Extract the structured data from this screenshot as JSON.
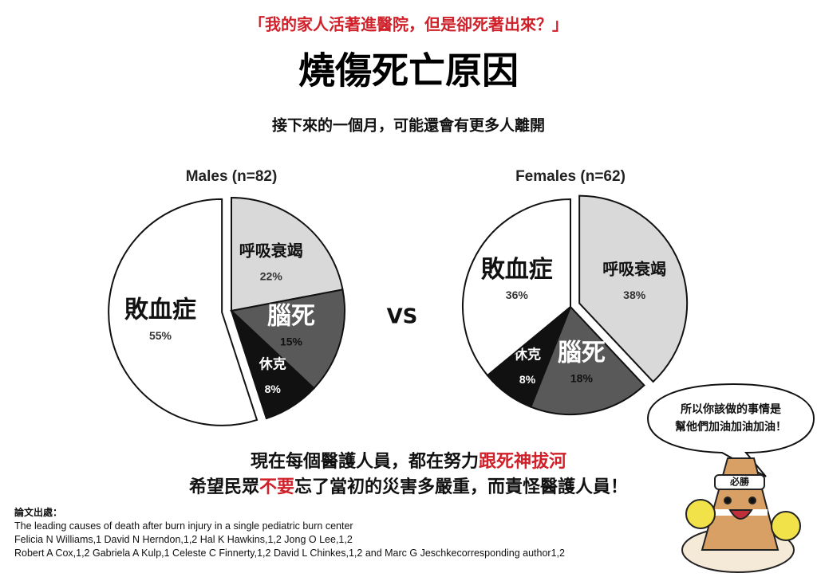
{
  "header": {
    "quote": "「我的家人活著進醫院，但是卻死著出來？」",
    "title": "燒傷死亡原因",
    "subtitle": "接下來的一個月，可能還會有更多人離開"
  },
  "chart_data": [
    {
      "type": "pie",
      "title": "Males (n=82)",
      "categories": [
        "呼吸衰竭",
        "腦死",
        "休克",
        "敗血症"
      ],
      "values": [
        22,
        15,
        8,
        55
      ],
      "value_labels": [
        "22%",
        "15%",
        "8%",
        "55%"
      ],
      "colors": [
        "#d9d9d9",
        "#595959",
        "#111111",
        "#ffffff"
      ]
    },
    {
      "type": "pie",
      "title": "Females (n=62)",
      "categories": [
        "呼吸衰竭",
        "腦死",
        "休克",
        "敗血症"
      ],
      "values": [
        38,
        18,
        8,
        36
      ],
      "value_labels": [
        "38%",
        "18%",
        "8%",
        "36%"
      ],
      "colors": [
        "#d9d9d9",
        "#595959",
        "#111111",
        "#ffffff"
      ]
    }
  ],
  "vs": "VS",
  "message": {
    "line1": [
      "現在每個醫護人員，都在努力",
      "跟死神拔河"
    ],
    "line2": [
      "希望民眾",
      "不要",
      "忘了當初的災害多嚴重，而責怪醫護人員！"
    ]
  },
  "references": {
    "heading": "論文出處：",
    "lines": [
      "The leading causes of death after burn injury in a single pediatric burn center",
      "Felicia N Williams,1 David N Herndon,1,2 Hal K Hawkins,1,2 Jong O Lee,1,2",
      "Robert A Cox,1,2 Gabriela A Kulp,1 Celeste C Finnerty,1,2 David L Chinkes,1,2 and Marc G Jeschkecorresponding author1,2"
    ]
  },
  "bubble": [
    "所以你該做的事情是",
    "幫他們加油加油加油！"
  ],
  "mascot": "必勝"
}
